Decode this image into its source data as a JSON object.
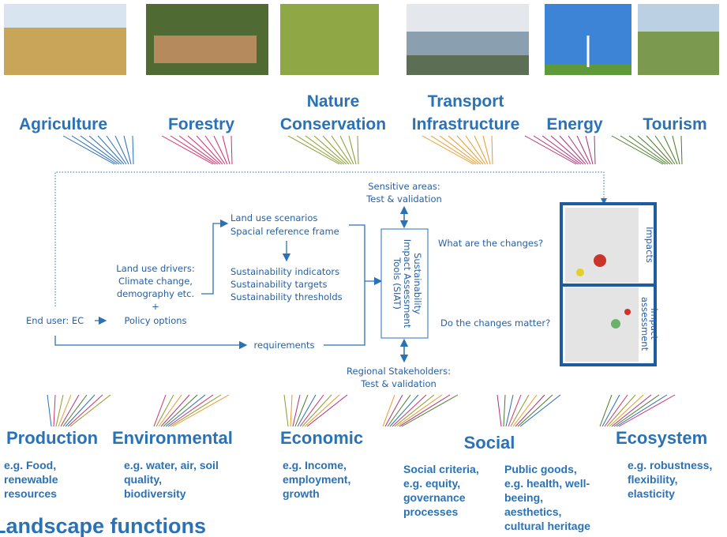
{
  "sectors": [
    {
      "lines": [
        "Agriculture"
      ]
    },
    {
      "lines": [
        "Forestry"
      ]
    },
    {
      "lines": [
        "Nature",
        "Conservation"
      ]
    },
    {
      "lines": [
        "Transport",
        "Infrastructure"
      ]
    },
    {
      "lines": [
        "Energy"
      ]
    },
    {
      "lines": [
        "Tourism"
      ]
    }
  ],
  "flow": {
    "sensitive": [
      "Sensitive areas:",
      "Test & validation"
    ],
    "scenarios": [
      "Land use scenarios",
      "Spacial reference frame"
    ],
    "indicators": [
      "Sustainability indicators",
      "Sustainability targets",
      "Sustainability thresholds"
    ],
    "drivers": [
      "Land use drivers:",
      "Climate change,",
      "demography etc.",
      "+"
    ],
    "policy": "Policy options",
    "end_user": "End user: EC",
    "requirements": "requirements",
    "siat": [
      "Sustainability",
      "Impact Assessment",
      "Tools (SIAT)"
    ],
    "question1": "What are the changes?",
    "question2": "Do the changes matter?",
    "regional": [
      "Regional Stakeholders:",
      "Test & validation"
    ],
    "map1": [
      "Impacts"
    ],
    "map2": [
      "Impact",
      "assessment"
    ]
  },
  "functions": [
    {
      "title": "Production",
      "desc": [
        "e.g. Food,",
        "renewable",
        "resources"
      ]
    },
    {
      "title": "Environmental",
      "desc": [
        "e.g. water, air, soil",
        "quality,",
        "biodiversity"
      ]
    },
    {
      "title": "Economic",
      "desc": [
        "e.g. Income,",
        "employment,",
        "growth"
      ]
    },
    {
      "title": "Social",
      "desc": [
        "Social criteria,",
        "e.g. equity,",
        "governance",
        "processes"
      ],
      "desc2": [
        "Public goods,",
        "e.g. health, well-",
        "beeing,",
        "aesthetics,",
        "cultural heritage"
      ]
    },
    {
      "title": "Ecosystem",
      "desc": [
        "e.g. robustness,",
        "flexibility,",
        "elasticity"
      ]
    }
  ],
  "footer": "Landscape functions"
}
